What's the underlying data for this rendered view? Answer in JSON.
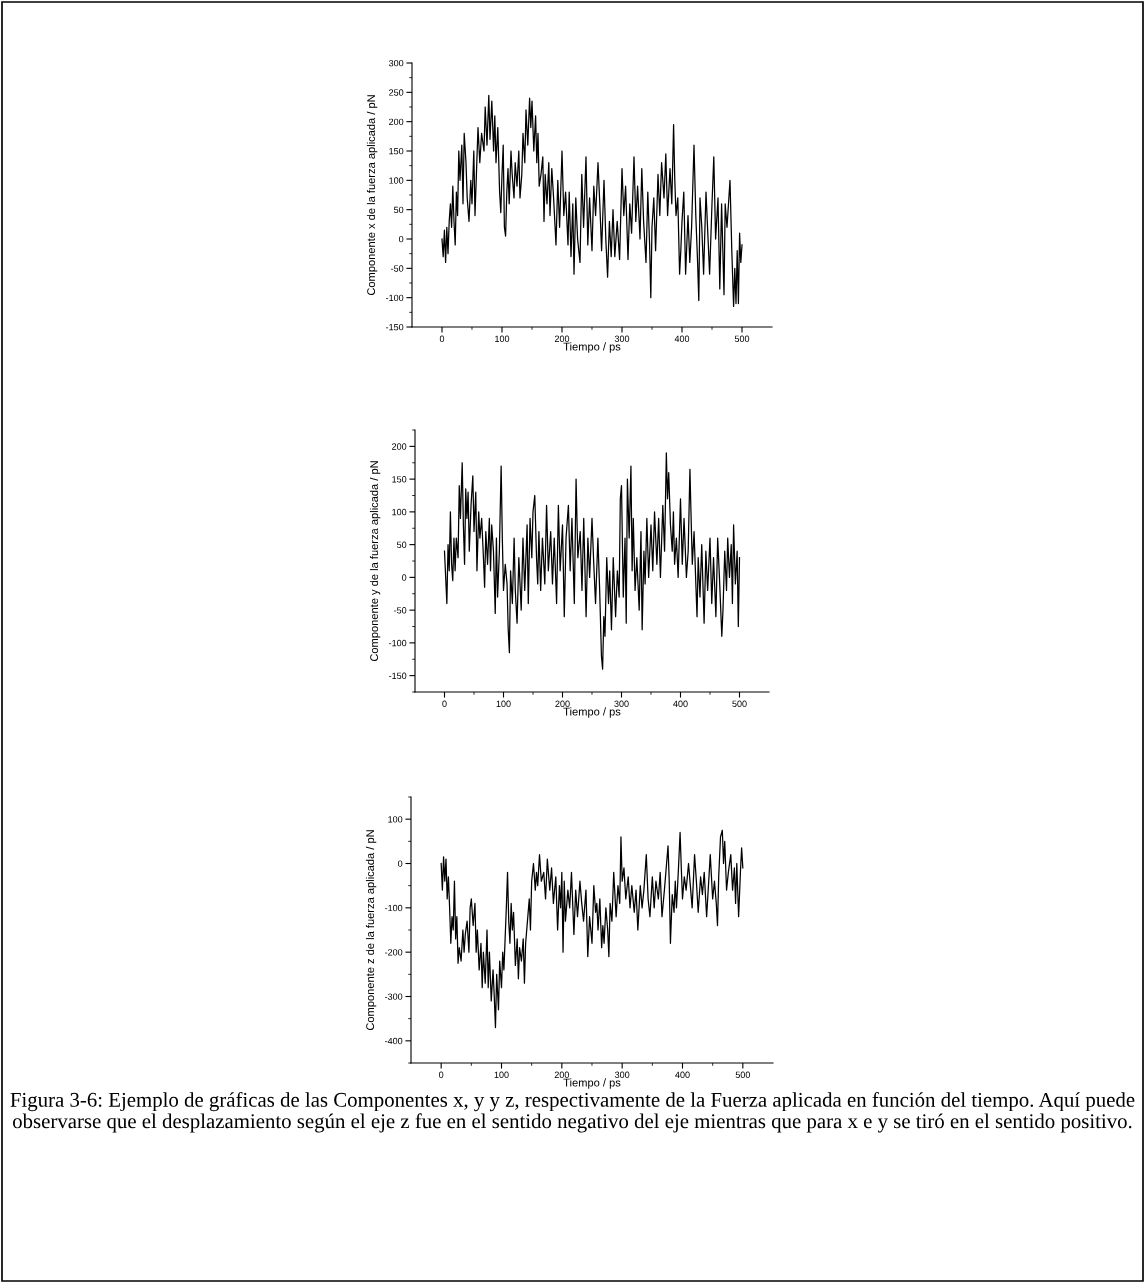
{
  "chart_data": [
    {
      "type": "line",
      "xlabel": "Tiempo / ps",
      "ylabel": "Componente x de la fuerza aplicada / pN",
      "xlim": [
        -50,
        550
      ],
      "ylim": [
        -150,
        300
      ],
      "xticks": [
        0,
        {
          "value": 50,
          "label": null
        },
        100,
        {
          "value": 150,
          "label": null
        },
        200,
        {
          "value": 250,
          "label": null
        },
        300,
        {
          "value": 350,
          "label": null
        },
        400,
        {
          "value": 450,
          "label": null
        },
        500
      ],
      "yticks": [
        -150,
        {
          "value": -125,
          "label": null
        },
        -100,
        {
          "value": -75,
          "label": null
        },
        -50,
        {
          "value": -25,
          "label": null
        },
        0,
        {
          "value": 25,
          "label": null
        },
        50,
        {
          "value": 75,
          "label": null
        },
        100,
        {
          "value": 125,
          "label": null
        },
        150,
        {
          "value": 175,
          "label": null
        },
        200,
        {
          "value": 225,
          "label": null
        },
        250,
        {
          "value": 275,
          "label": null
        },
        300
      ],
      "marker": "none",
      "line_style": "solid",
      "series": [
        {
          "color": "#000000",
          "x": [
            0,
            2,
            4,
            6,
            8,
            10,
            12,
            14,
            16,
            18,
            20,
            22,
            24,
            26,
            28,
            30,
            33,
            35,
            37,
            40,
            42,
            45,
            48,
            50,
            53,
            55,
            58,
            60,
            63,
            66,
            70,
            72,
            75,
            78,
            80,
            83,
            86,
            88,
            90,
            93,
            96,
            98,
            100,
            102,
            104,
            106,
            108,
            110,
            112,
            115,
            117,
            120,
            122,
            125,
            128,
            130,
            133,
            135,
            138,
            140,
            143,
            146,
            148,
            150,
            153,
            156,
            158,
            160,
            162,
            165,
            168,
            170,
            172,
            175,
            178,
            180,
            183,
            186,
            190,
            193,
            196,
            200,
            203,
            206,
            210,
            212,
            215,
            218,
            220,
            223,
            226,
            230,
            233,
            236,
            240,
            243,
            246,
            250,
            253,
            256,
            260,
            263,
            266,
            270,
            273,
            276,
            279,
            282,
            285,
            288,
            292,
            296,
            300,
            303,
            306,
            310,
            313,
            316,
            320,
            323,
            326,
            330,
            333,
            336,
            340,
            343,
            346,
            348,
            350,
            353,
            356,
            360,
            363,
            366,
            370,
            373,
            376,
            380,
            383,
            386,
            388,
            390,
            393,
            396,
            398,
            400,
            403,
            406,
            410,
            413,
            416,
            420,
            423,
            426,
            428,
            430,
            433,
            436,
            440,
            443,
            446,
            450,
            453,
            456,
            460,
            463,
            466,
            470,
            472,
            475,
            480,
            483,
            486,
            488,
            490,
            492,
            494,
            496,
            498,
            500
          ],
          "values": [
            0,
            -30,
            15,
            -40,
            20,
            -25,
            30,
            60,
            20,
            90,
            30,
            -10,
            80,
            40,
            150,
            100,
            160,
            60,
            180,
            130,
            70,
            30,
            100,
            60,
            150,
            40,
            130,
            190,
            130,
            180,
            150,
            225,
            160,
            245,
            170,
            235,
            150,
            210,
            130,
            190,
            80,
            45,
            110,
            160,
            20,
            5,
            80,
            120,
            60,
            150,
            110,
            70,
            130,
            90,
            150,
            70,
            110,
            180,
            130,
            220,
            160,
            240,
            190,
            235,
            150,
            210,
            130,
            180,
            90,
            110,
            140,
            30,
            110,
            60,
            130,
            40,
            120,
            70,
            -10,
            100,
            20,
            150,
            40,
            80,
            -10,
            80,
            -30,
            60,
            -60,
            70,
            0,
            -40,
            110,
            20,
            140,
            -10,
            70,
            -20,
            90,
            40,
            130,
            60,
            -20,
            100,
            0,
            -65,
            30,
            -30,
            50,
            -30,
            30,
            -35,
            120,
            40,
            90,
            -35,
            60,
            10,
            140,
            30,
            90,
            0,
            120,
            30,
            -40,
            80,
            -10,
            -100,
            20,
            70,
            -20,
            110,
            40,
            130,
            70,
            145,
            40,
            120,
            60,
            195,
            100,
            40,
            70,
            -60,
            -20,
            30,
            80,
            -60,
            40,
            -40,
            20,
            160,
            40,
            -40,
            -105,
            70,
            20,
            -60,
            80,
            10,
            -60,
            60,
            140,
            0,
            70,
            -85,
            60,
            -95,
            60,
            20,
            100,
            -20,
            -115,
            -50,
            -110,
            -20,
            -110,
            10,
            -40,
            -10
          ]
        }
      ]
    },
    {
      "type": "line",
      "xlabel": "Tiempo / ps",
      "ylabel": "Componente y de la fuerza aplicada / pN",
      "xlim": [
        -50,
        550
      ],
      "ylim": [
        -175,
        225
      ],
      "xticks": [
        0,
        {
          "value": 50,
          "label": null
        },
        100,
        {
          "value": 150,
          "label": null
        },
        200,
        {
          "value": 250,
          "label": null
        },
        300,
        {
          "value": 350,
          "label": null
        },
        400,
        {
          "value": 450,
          "label": null
        },
        500
      ],
      "yticks": [
        {
          "value": -175,
          "label": null
        },
        -150,
        {
          "value": -125,
          "label": null
        },
        -100,
        {
          "value": -75,
          "label": null
        },
        -50,
        {
          "value": -25,
          "label": null
        },
        0,
        {
          "value": 25,
          "label": null
        },
        50,
        {
          "value": 75,
          "label": null
        },
        100,
        {
          "value": 125,
          "label": null
        },
        150,
        {
          "value": 175,
          "label": null
        },
        200,
        {
          "value": 225,
          "label": null
        }
      ],
      "marker": "none",
      "line_style": "solid",
      "series": [
        {
          "color": "#000000",
          "x": [
            0,
            2,
            4,
            6,
            8,
            10,
            12,
            14,
            16,
            18,
            20,
            23,
            25,
            27,
            30,
            32,
            34,
            36,
            38,
            40,
            42,
            45,
            48,
            50,
            53,
            55,
            58,
            60,
            63,
            66,
            68,
            70,
            73,
            76,
            78,
            80,
            83,
            86,
            88,
            90,
            93,
            96,
            98,
            100,
            103,
            106,
            108,
            110,
            112,
            115,
            118,
            120,
            123,
            126,
            130,
            133,
            136,
            140,
            142,
            145,
            148,
            150,
            153,
            156,
            158,
            160,
            163,
            166,
            170,
            173,
            176,
            180,
            183,
            186,
            190,
            193,
            196,
            200,
            203,
            206,
            210,
            213,
            216,
            220,
            223,
            226,
            230,
            233,
            236,
            240,
            243,
            246,
            250,
            253,
            256,
            260,
            263,
            266,
            268,
            270,
            272,
            275,
            278,
            280,
            283,
            286,
            290,
            293,
            296,
            298,
            300,
            303,
            306,
            308,
            310,
            313,
            316,
            318,
            320,
            323,
            326,
            330,
            333,
            335,
            338,
            340,
            343,
            346,
            350,
            353,
            356,
            360,
            363,
            366,
            370,
            373,
            376,
            378,
            380,
            383,
            386,
            388,
            390,
            393,
            396,
            400,
            403,
            406,
            410,
            413,
            416,
            418,
            420,
            423,
            426,
            428,
            430,
            433,
            436,
            440,
            443,
            446,
            450,
            453,
            456,
            460,
            463,
            466,
            470,
            472,
            475,
            478,
            480,
            483,
            486,
            488,
            490,
            493,
            496,
            498,
            500
          ],
          "values": [
            40,
            0,
            -40,
            50,
            10,
            100,
            20,
            -5,
            60,
            10,
            60,
            30,
            140,
            90,
            175,
            80,
            20,
            135,
            90,
            130,
            40,
            110,
            155,
            70,
            130,
            10,
            100,
            60,
            90,
            30,
            -15,
            70,
            20,
            90,
            10,
            80,
            40,
            -55,
            60,
            -30,
            40,
            170,
            60,
            -20,
            20,
            -10,
            -80,
            -115,
            10,
            -40,
            60,
            -20,
            -70,
            30,
            -50,
            60,
            -20,
            80,
            -40,
            90,
            30,
            100,
            125,
            30,
            -10,
            70,
            -20,
            60,
            -10,
            110,
            10,
            70,
            -10,
            60,
            -40,
            110,
            10,
            80,
            -60,
            60,
            110,
            10,
            90,
            -40,
            150,
            30,
            70,
            -20,
            90,
            -60,
            60,
            0,
            90,
            20,
            -40,
            60,
            -20,
            -120,
            -140,
            -60,
            -90,
            30,
            -40,
            10,
            -80,
            30,
            -60,
            10,
            -30,
            120,
            140,
            -30,
            60,
            -70,
            150,
            60,
            170,
            10,
            90,
            -20,
            30,
            -50,
            70,
            -80,
            40,
            -10,
            90,
            0,
            80,
            10,
            100,
            20,
            90,
            0,
            110,
            40,
            190,
            120,
            160,
            80,
            40,
            100,
            20,
            60,
            0,
            120,
            20,
            90,
            0,
            40,
            165,
            90,
            20,
            70,
            -10,
            -60,
            30,
            -30,
            50,
            -70,
            40,
            -20,
            60,
            -40,
            30,
            -60,
            60,
            0,
            -90,
            -50,
            40,
            -20,
            60,
            0,
            50,
            -40,
            80,
            -10,
            40,
            -75,
            30
          ]
        }
      ]
    },
    {
      "type": "line",
      "xlabel": "Tiempo / ps",
      "ylabel": "Componente z de la fuerza aplicada / pN",
      "xlim": [
        -50,
        550
      ],
      "ylim": [
        -450,
        150
      ],
      "xticks": [
        0,
        {
          "value": 50,
          "label": null
        },
        100,
        {
          "value": 150,
          "label": null
        },
        200,
        {
          "value": 250,
          "label": null
        },
        300,
        {
          "value": 350,
          "label": null
        },
        400,
        {
          "value": 450,
          "label": null
        },
        500
      ],
      "yticks": [
        {
          "value": -450,
          "label": null
        },
        -400,
        {
          "value": -350,
          "label": null
        },
        -300,
        {
          "value": -250,
          "label": null
        },
        -200,
        {
          "value": -150,
          "label": null
        },
        -100,
        {
          "value": -50,
          "label": null
        },
        0,
        {
          "value": 50,
          "label": null
        },
        100,
        {
          "value": 150,
          "label": null
        }
      ],
      "marker": "none",
      "line_style": "solid",
      "annotations": [
        "Figura 3-6: Ejemplo de gráficas de las Componentes x, y y z, respectivamente de la Fuerza aplicada en función del tiempo. Aquí puede observarse que el desplazamiento según el eje z fue en el sentido negativo del eje mientras que para x e y se tiró en el sentido positivo."
      ],
      "series": [
        {
          "color": "#000000",
          "x": [
            0,
            2,
            4,
            6,
            8,
            10,
            12,
            14,
            16,
            18,
            20,
            22,
            24,
            26,
            28,
            30,
            33,
            36,
            38,
            40,
            43,
            46,
            48,
            50,
            53,
            56,
            58,
            60,
            63,
            66,
            68,
            70,
            73,
            76,
            78,
            80,
            83,
            86,
            88,
            90,
            92,
            95,
            97,
            100,
            102,
            104,
            106,
            108,
            110,
            112,
            114,
            116,
            118,
            120,
            123,
            126,
            128,
            130,
            133,
            136,
            138,
            140,
            143,
            146,
            148,
            150,
            153,
            156,
            158,
            160,
            163,
            166,
            170,
            173,
            176,
            180,
            183,
            186,
            190,
            193,
            196,
            198,
            200,
            202,
            204,
            206,
            210,
            213,
            216,
            220,
            223,
            226,
            230,
            233,
            236,
            240,
            243,
            246,
            250,
            253,
            256,
            258,
            260,
            263,
            266,
            268,
            270,
            273,
            276,
            278,
            280,
            283,
            286,
            290,
            293,
            296,
            298,
            300,
            303,
            306,
            310,
            313,
            316,
            320,
            323,
            326,
            330,
            333,
            336,
            340,
            343,
            346,
            350,
            353,
            356,
            360,
            363,
            366,
            370,
            373,
            376,
            378,
            380,
            383,
            386,
            388,
            390,
            393,
            396,
            398,
            400,
            403,
            406,
            410,
            413,
            416,
            420,
            423,
            426,
            430,
            433,
            436,
            440,
            443,
            446,
            450,
            453,
            456,
            458,
            460,
            463,
            466,
            468,
            470,
            473,
            476,
            480,
            483,
            486,
            488,
            490,
            493,
            496,
            498,
            500
          ],
          "values": [
            0,
            -60,
            15,
            -40,
            10,
            -80,
            -30,
            -100,
            -180,
            -120,
            -150,
            -40,
            -170,
            -120,
            -225,
            -190,
            -220,
            -150,
            -200,
            -160,
            -130,
            -200,
            -100,
            -80,
            -140,
            -90,
            -200,
            -150,
            -240,
            -180,
            -280,
            -200,
            -270,
            -150,
            -280,
            -200,
            -310,
            -240,
            -300,
            -370,
            -250,
            -330,
            -220,
            -280,
            -200,
            -240,
            -170,
            -100,
            -20,
            -130,
            -180,
            -90,
            -150,
            -110,
            -230,
            -170,
            -260,
            -190,
            -220,
            -170,
            -270,
            -180,
            -130,
            -80,
            -150,
            -40,
            0,
            -60,
            -20,
            -50,
            20,
            -40,
            -20,
            -80,
            10,
            -60,
            -10,
            -90,
            -30,
            -150,
            -50,
            -100,
            -20,
            -200,
            -40,
            -130,
            -60,
            -100,
            -20,
            -160,
            -60,
            -120,
            -40,
            -90,
            -130,
            -60,
            -210,
            -120,
            -180,
            -50,
            -110,
            -90,
            -150,
            -80,
            -190,
            -140,
            -180,
            -100,
            -150,
            -210,
            -90,
            -130,
            -20,
            -120,
            -50,
            -90,
            60,
            -40,
            -10,
            -80,
            -30,
            -100,
            -50,
            -110,
            -60,
            -150,
            -50,
            -100,
            -60,
            20,
            -80,
            -120,
            -30,
            -100,
            -40,
            -80,
            -20,
            -120,
            -60,
            -10,
            40,
            -40,
            -180,
            -70,
            -110,
            -40,
            -100,
            -20,
            70,
            -10,
            -80,
            -30,
            -60,
            0,
            -50,
            -100,
            20,
            -40,
            -110,
            -30,
            -70,
            -20,
            -120,
            -50,
            20,
            -80,
            -40,
            -90,
            -140,
            -30,
            60,
            75,
            0,
            50,
            -60,
            -20,
            20,
            -60,
            -10,
            -90,
            0,
            -120,
            -20,
            35,
            -10
          ]
        }
      ]
    }
  ]
}
